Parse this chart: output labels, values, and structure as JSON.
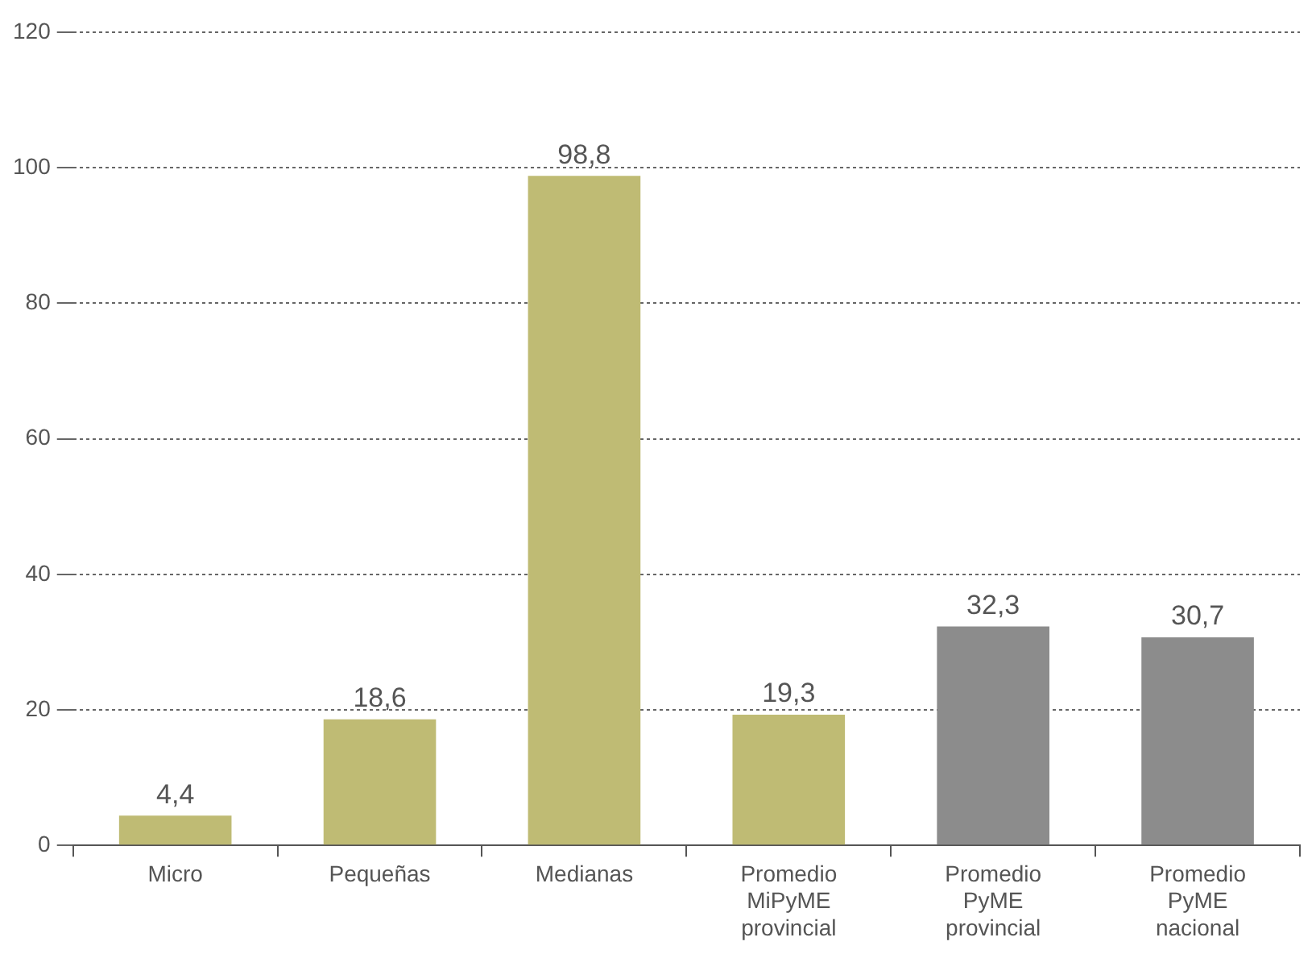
{
  "chart_data": {
    "type": "bar",
    "categories": [
      "Micro",
      "Pequeñas",
      "Medianas",
      "Promedio MiPyME provincial",
      "Promedio PyME provincial",
      "Promedio PyME nacional"
    ],
    "values": [
      4.4,
      18.6,
      98.8,
      19.3,
      32.3,
      30.7
    ],
    "colors": [
      "#bfbb74",
      "#bfbb74",
      "#bfbb74",
      "#bfbb74",
      "#8c8c8c",
      "#8c8c8c"
    ],
    "value_labels": [
      "4,4",
      "18,6",
      "98,8",
      "19,3",
      "32,3",
      "30,7"
    ],
    "ylim": [
      0,
      120
    ],
    "yticks": [
      0,
      20,
      40,
      60,
      80,
      100,
      120
    ],
    "grid": "y",
    "legend": false
  }
}
